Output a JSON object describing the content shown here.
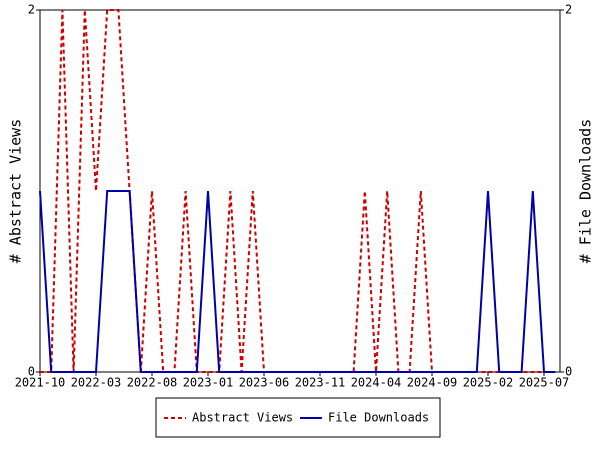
{
  "chart_data": {
    "type": "line",
    "ylabel": "# Abstract Views",
    "y2label": "# File Downloads",
    "categories": [
      "2021-10",
      null,
      null,
      null,
      null,
      "2022-03",
      null,
      null,
      null,
      null,
      "2022-08",
      null,
      null,
      null,
      null,
      "2023-01",
      null,
      null,
      null,
      null,
      "2023-06",
      null,
      null,
      null,
      null,
      "2023-11",
      null,
      null,
      null,
      null,
      "2024-04",
      null,
      null,
      null,
      null,
      "2024-09",
      null,
      null,
      null,
      null,
      "2025-02",
      null,
      null,
      null,
      null,
      "2025-07",
      null
    ],
    "series": [
      {
        "name": "Abstract Views",
        "color": "#cc0000",
        "dashed": true,
        "values": [
          0,
          0,
          2,
          0,
          2,
          1,
          2,
          2,
          1,
          0,
          1,
          0,
          0,
          1,
          0,
          0,
          0,
          1,
          0,
          1,
          0,
          0,
          0,
          0,
          0,
          0,
          0,
          0,
          0,
          1,
          0,
          1,
          0,
          0,
          1,
          0,
          0,
          0,
          0,
          0,
          0,
          0,
          0,
          0,
          0,
          0,
          0
        ]
      },
      {
        "name": "File Downloads",
        "color": "#0000aa",
        "dashed": false,
        "axis": "y2",
        "values": [
          1,
          0,
          0,
          0,
          0,
          0,
          1,
          1,
          1,
          0,
          0,
          0,
          0,
          0,
          0,
          1,
          0,
          0,
          0,
          0,
          0,
          0,
          0,
          0,
          0,
          0,
          0,
          0,
          0,
          0,
          0,
          0,
          0,
          0,
          0,
          0,
          0,
          0,
          0,
          0,
          1,
          0,
          0,
          0,
          1,
          0,
          0
        ]
      }
    ],
    "ylim": [
      0,
      2
    ],
    "yticks": [
      0,
      2
    ],
    "y2lim": [
      0,
      2
    ],
    "y2ticks": [
      0,
      2
    ],
    "legend": "bottom"
  }
}
